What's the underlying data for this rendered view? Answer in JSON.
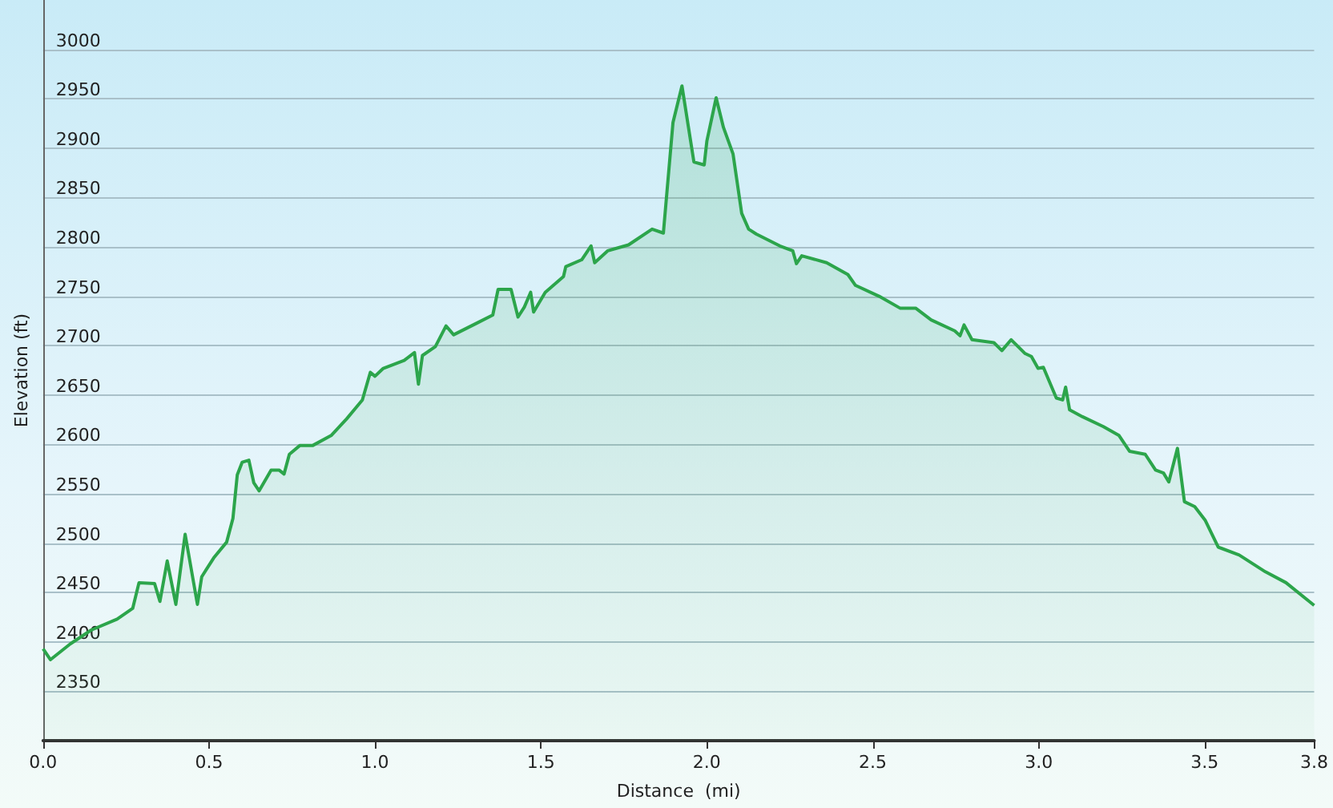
{
  "chart_data": {
    "type": "area",
    "xlabel": "Distance  (mi)",
    "ylabel": "Elevation (ft)",
    "grid": "y",
    "marker": "none",
    "xlim": [
      0,
      3.83
    ],
    "ylim": [
      2300,
      3050
    ],
    "xticks": [
      {
        "value": 0,
        "label": "0.0"
      },
      {
        "value": 0.5,
        "label": "0.5"
      },
      {
        "value": 1,
        "label": "1.0"
      },
      {
        "value": 1.5,
        "label": "1.5"
      },
      {
        "value": 2,
        "label": "2.0"
      },
      {
        "value": 2.5,
        "label": "2.5"
      },
      {
        "value": 3,
        "label": "3.0"
      },
      {
        "value": 3.5,
        "label": "3.5"
      },
      {
        "value": 3.83,
        "label": "3.8"
      }
    ],
    "yticks": [
      2350,
      2400,
      2450,
      2500,
      2550,
      2600,
      2650,
      2700,
      2750,
      2800,
      2850,
      2900,
      2950,
      3000
    ],
    "series": [
      {
        "color": "#2ca54b",
        "x": [
          0,
          0.022,
          0.082,
          0.145,
          0.223,
          0.27,
          0.289,
          0.336,
          0.352,
          0.374,
          0.4,
          0.428,
          0.465,
          0.478,
          0.514,
          0.553,
          0.572,
          0.585,
          0.6,
          0.62,
          0.635,
          0.651,
          0.687,
          0.711,
          0.726,
          0.742,
          0.774,
          0.813,
          0.868,
          0.915,
          0.962,
          0.986,
          1.0,
          1.025,
          1.088,
          1.119,
          1.131,
          1.143,
          1.182,
          1.214,
          1.237,
          1.308,
          1.355,
          1.371,
          1.41,
          1.431,
          1.45,
          1.469,
          1.478,
          1.513,
          1.568,
          1.575,
          1.623,
          1.651,
          1.662,
          1.701,
          1.764,
          1.835,
          1.869,
          1.898,
          1.925,
          1.961,
          1.992,
          2.0,
          2.028,
          2.05,
          2.079,
          2.105,
          2.126,
          2.149,
          2.22,
          2.259,
          2.27,
          2.286,
          2.361,
          2.425,
          2.448,
          2.519,
          2.582,
          2.629,
          2.676,
          2.747,
          2.763,
          2.775,
          2.799,
          2.865,
          2.889,
          2.917,
          2.959,
          2.978,
          2.998,
          3.014,
          3.053,
          3.072,
          3.081,
          3.093,
          3.132,
          3.195,
          3.242,
          3.274,
          3.321,
          3.352,
          3.376,
          3.392,
          3.418,
          3.439,
          3.47,
          3.502,
          3.541,
          3.604,
          3.683,
          3.745,
          3.83
        ],
        "values": [
          2393,
          2382,
          2398,
          2412,
          2423,
          2434,
          2460,
          2459,
          2441,
          2482,
          2438,
          2509,
          2438,
          2466,
          2485,
          2501,
          2525,
          2569,
          2582,
          2584,
          2561,
          2553,
          2574,
          2574,
          2570,
          2590,
          2599,
          2599,
          2609,
          2626,
          2645,
          2673,
          2669,
          2677,
          2685,
          2693,
          2661,
          2690,
          2699,
          2720,
          2711,
          2723,
          2731,
          2757,
          2757,
          2729,
          2739,
          2754,
          2734,
          2754,
          2770,
          2780,
          2787,
          2801,
          2784,
          2796,
          2802,
          2818,
          2814,
          2926,
          2963,
          2886,
          2883,
          2907,
          2951,
          2921,
          2894,
          2834,
          2818,
          2813,
          2801,
          2796,
          2783,
          2791,
          2784,
          2772,
          2761,
          2750,
          2738,
          2738,
          2726,
          2715,
          2710,
          2721,
          2706,
          2703,
          2695,
          2706,
          2692,
          2689,
          2677,
          2678,
          2647,
          2645,
          2658,
          2635,
          2628,
          2618,
          2609,
          2593,
          2590,
          2574,
          2571,
          2562,
          2596,
          2542,
          2537,
          2523,
          2496,
          2488,
          2471,
          2460,
          2437
        ]
      }
    ]
  }
}
